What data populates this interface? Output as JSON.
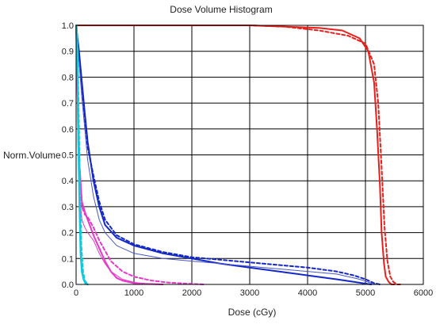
{
  "chart_data": {
    "type": "line",
    "title": "Dose Volume Histogram",
    "xlabel": "Dose (cGy)",
    "ylabel": "Norm.Volume",
    "xlim": [
      0,
      6000
    ],
    "ylim": [
      0,
      1
    ],
    "xticks": [
      "0",
      "1000",
      "2000",
      "3000",
      "4000",
      "5000",
      "6000"
    ],
    "yticks": [
      "0.0",
      "0.1",
      "0.2",
      "0.3",
      "0.4",
      "0.5",
      "0.6",
      "0.7",
      "0.8",
      "0.9",
      "1.0"
    ],
    "grid": true,
    "series": [
      {
        "color": "#e8201c",
        "dash": false,
        "width": 2,
        "x": [
          0,
          3000,
          4200,
          4600,
          4900,
          5050,
          5150,
          5200,
          5250,
          5280,
          5320,
          5350,
          5400,
          5450,
          5500
        ],
        "y": [
          1.0,
          1.0,
          0.99,
          0.98,
          0.95,
          0.9,
          0.78,
          0.6,
          0.38,
          0.2,
          0.08,
          0.03,
          0.01,
          0.0,
          0.0
        ]
      },
      {
        "color": "#e8201c",
        "dash": true,
        "width": 2,
        "x": [
          0,
          3000,
          3600,
          4200,
          4700,
          5000,
          5150,
          5220,
          5280,
          5330,
          5380,
          5430,
          5480,
          5550,
          5600
        ],
        "y": [
          1.0,
          1.0,
          0.995,
          0.98,
          0.96,
          0.93,
          0.85,
          0.7,
          0.45,
          0.22,
          0.09,
          0.03,
          0.01,
          0.0,
          0.0
        ]
      },
      {
        "color": "#1428c8",
        "dash": false,
        "width": 2,
        "x": [
          0,
          50,
          100,
          150,
          200,
          300,
          400,
          500,
          700,
          1000,
          1500,
          2000,
          2500,
          3000,
          3500,
          4000,
          4500,
          4800,
          5000,
          5100
        ],
        "y": [
          1.0,
          0.9,
          0.78,
          0.66,
          0.55,
          0.4,
          0.3,
          0.23,
          0.18,
          0.15,
          0.12,
          0.1,
          0.08,
          0.065,
          0.05,
          0.035,
          0.02,
          0.01,
          0.003,
          0.0
        ]
      },
      {
        "color": "#1428c8",
        "dash": true,
        "width": 2,
        "x": [
          0,
          50,
          100,
          150,
          200,
          300,
          400,
          500,
          700,
          1000,
          1500,
          2000,
          2500,
          3000,
          3500,
          4000,
          4500,
          4800,
          5000,
          5150,
          5250
        ],
        "y": [
          1.0,
          0.88,
          0.76,
          0.64,
          0.53,
          0.42,
          0.32,
          0.25,
          0.19,
          0.155,
          0.125,
          0.105,
          0.095,
          0.085,
          0.075,
          0.065,
          0.05,
          0.035,
          0.02,
          0.005,
          0.0
        ]
      },
      {
        "color": "#4a58c8",
        "dash": false,
        "width": 1,
        "x": [
          0,
          50,
          100,
          150,
          200,
          300,
          400,
          500,
          700,
          1000,
          1500,
          2000,
          2500,
          3000,
          3500,
          4000,
          4500,
          4900,
          5100,
          5200
        ],
        "y": [
          1.0,
          0.86,
          0.72,
          0.6,
          0.48,
          0.34,
          0.25,
          0.2,
          0.15,
          0.12,
          0.1,
          0.09,
          0.08,
          0.07,
          0.06,
          0.05,
          0.04,
          0.02,
          0.005,
          0.0
        ]
      },
      {
        "color": "#e838c8",
        "dash": false,
        "width": 2,
        "x": [
          0,
          30,
          60,
          100,
          150,
          200,
          250,
          300,
          400,
          500,
          600,
          700,
          800,
          1000,
          1200,
          1500
        ],
        "y": [
          1.0,
          0.7,
          0.45,
          0.32,
          0.28,
          0.25,
          0.22,
          0.19,
          0.14,
          0.09,
          0.05,
          0.025,
          0.015,
          0.005,
          0.002,
          0.0
        ]
      },
      {
        "color": "#e838c8",
        "dash": true,
        "width": 2,
        "x": [
          0,
          50,
          100,
          150,
          200,
          300,
          400,
          500,
          600,
          800,
          1000,
          1300,
          1600,
          2000,
          2200
        ],
        "y": [
          1.0,
          0.5,
          0.3,
          0.27,
          0.26,
          0.22,
          0.17,
          0.13,
          0.09,
          0.05,
          0.03,
          0.015,
          0.007,
          0.002,
          0.0
        ]
      },
      {
        "color": "#e838c8",
        "dash": false,
        "width": 1,
        "x": [
          0,
          30,
          60,
          100,
          150,
          200,
          300,
          400,
          500,
          600,
          800,
          1000,
          1300
        ],
        "y": [
          1.0,
          0.55,
          0.35,
          0.25,
          0.22,
          0.2,
          0.17,
          0.12,
          0.08,
          0.05,
          0.02,
          0.008,
          0.0
        ]
      },
      {
        "color": "#14c8dc",
        "dash": false,
        "width": 2.5,
        "x": [
          0,
          5,
          10,
          20,
          30,
          40,
          60,
          80,
          100,
          130,
          160,
          200
        ],
        "y": [
          1.0,
          1.0,
          0.98,
          0.9,
          0.75,
          0.55,
          0.3,
          0.12,
          0.05,
          0.02,
          0.005,
          0.0
        ]
      },
      {
        "color": "#14c8dc",
        "dash": true,
        "width": 2,
        "x": [
          0,
          10,
          20,
          30,
          50,
          70,
          90,
          120,
          150,
          200
        ],
        "y": [
          1.0,
          0.99,
          0.95,
          0.85,
          0.6,
          0.35,
          0.15,
          0.05,
          0.015,
          0.0
        ]
      }
    ]
  }
}
